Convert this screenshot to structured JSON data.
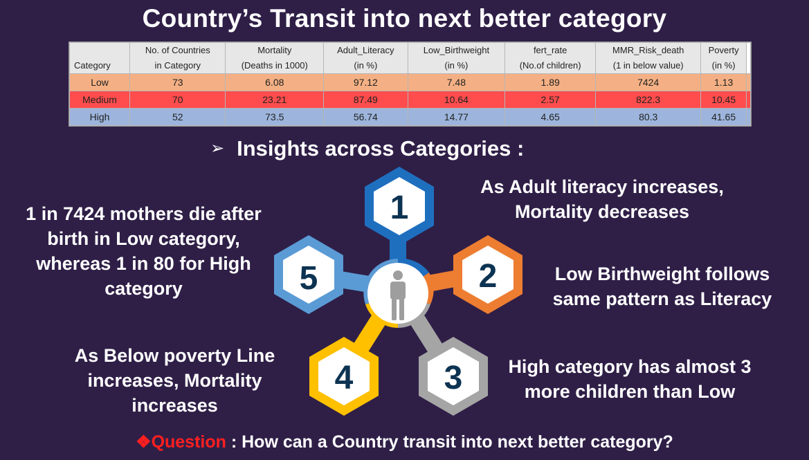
{
  "title": "Country’s Transit into next better category",
  "table": {
    "headers": [
      {
        "l1": "",
        "l2": "Category"
      },
      {
        "l1": "No. of Countries",
        "l2": "in Category"
      },
      {
        "l1": "Mortality",
        "l2": "(Deaths in 1000)"
      },
      {
        "l1": "Adult_Literacy",
        "l2": "(in %)"
      },
      {
        "l1": "Low_Birthweight",
        "l2": "(in %)"
      },
      {
        "l1": "fert_rate",
        "l2": "(No.of children)"
      },
      {
        "l1": "MMR_Risk_death",
        "l2": "(1 in below value)"
      },
      {
        "l1": "Poverty",
        "l2": "(in %)"
      }
    ],
    "rows": [
      {
        "category": "Low",
        "countries": "73",
        "mortality": "6.08",
        "literacy": "97.12",
        "birthweight": "7.48",
        "fert_rate": "1.89",
        "mmr": "7424",
        "poverty": "1.13",
        "color": "#f4b084"
      },
      {
        "category": "Medium",
        "countries": "70",
        "mortality": "23.21",
        "literacy": "87.49",
        "birthweight": "10.64",
        "fert_rate": "2.57",
        "mmr": "822.3",
        "poverty": "10.45",
        "color": "#ff4d4d"
      },
      {
        "category": "High",
        "countries": "52",
        "mortality": "73.5",
        "literacy": "56.74",
        "birthweight": "14.77",
        "fert_rate": "4.65",
        "mmr": "80.3",
        "poverty": "41.65",
        "color": "#9db5dd"
      }
    ]
  },
  "subtitle": {
    "arrow": "➢",
    "text": "Insights across Categories :"
  },
  "diagram": {
    "center_icon": "person-icon",
    "hexagons": [
      {
        "number": "1",
        "color": "#1f6fbf"
      },
      {
        "number": "2",
        "color": "#ed7d31"
      },
      {
        "number": "3",
        "color": "#a5a5a5"
      },
      {
        "number": "4",
        "color": "#ffc000"
      },
      {
        "number": "5",
        "color": "#5b9bd5"
      }
    ]
  },
  "insights": {
    "i1": [
      "As Adult literacy increases,",
      "Mortality decreases"
    ],
    "i2": [
      "Low Birthweight follows",
      "same pattern as Literacy"
    ],
    "i3": [
      "High category has almost 3",
      "more children than Low"
    ],
    "i4": [
      "As Below poverty Line",
      "increases, Mortality",
      "increases"
    ],
    "i5": [
      "1 in 7424 mothers die after",
      "birth in Low category,",
      "whereas 1 in 80 for High",
      "category"
    ]
  },
  "question": {
    "bullet": "❖",
    "label": "Question",
    "text": " : How can a Country transit into next better category?"
  }
}
